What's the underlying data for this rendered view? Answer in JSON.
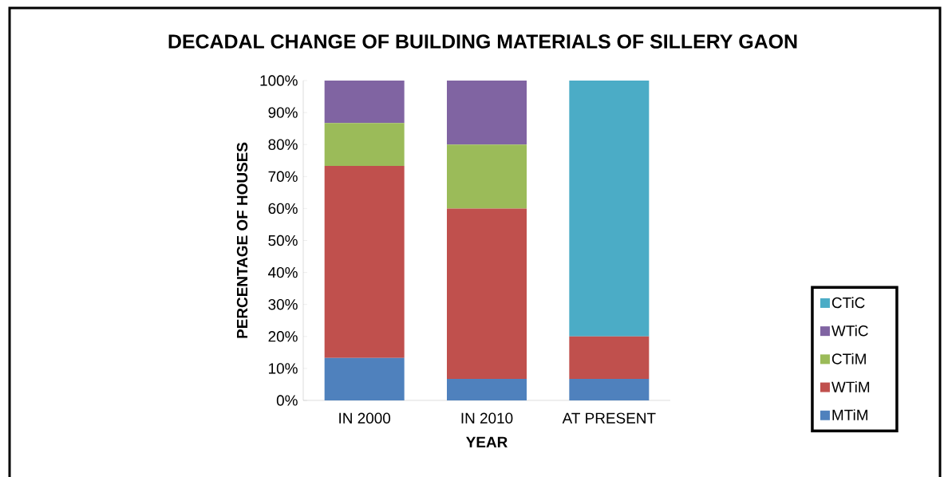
{
  "chart_data": {
    "type": "bar",
    "title": "DECADAL CHANGE OF BUILDING MATERIALS OF SILLERY GAON",
    "xlabel": "YEAR",
    "ylabel": "PERCENTAGE OF HOUSES",
    "categories": [
      "IN 2000",
      "IN 2010",
      "AT PRESENT"
    ],
    "stacked": true,
    "series": [
      {
        "name": "MTiM",
        "color": "#4f81bd",
        "values": [
          13.3,
          6.7,
          6.7
        ]
      },
      {
        "name": "WTiM",
        "color": "#c0504d",
        "values": [
          60,
          53.3,
          13.3
        ]
      },
      {
        "name": "CTiM",
        "color": "#9bbb59",
        "values": [
          13.4,
          20,
          0
        ]
      },
      {
        "name": "WTiC",
        "color": "#8064a2",
        "values": [
          13.3,
          20,
          0
        ]
      },
      {
        "name": "CTiC",
        "color": "#4bacc6",
        "values": [
          0,
          0,
          80
        ]
      }
    ],
    "ylim": [
      0,
      100
    ],
    "yticks": [
      {
        "value": 0,
        "label": "0%"
      },
      {
        "value": 10,
        "label": "10%"
      },
      {
        "value": 20,
        "label": "20%"
      },
      {
        "value": 30,
        "label": "30%"
      },
      {
        "value": 40,
        "label": "40%"
      },
      {
        "value": 50,
        "label": "50%"
      },
      {
        "value": 60,
        "label": "60%"
      },
      {
        "value": 70,
        "label": "70%"
      },
      {
        "value": 80,
        "label": "80%"
      },
      {
        "value": 90,
        "label": "90%"
      },
      {
        "value": 100,
        "label": "100%"
      }
    ],
    "legend": "right",
    "grid": false
  }
}
